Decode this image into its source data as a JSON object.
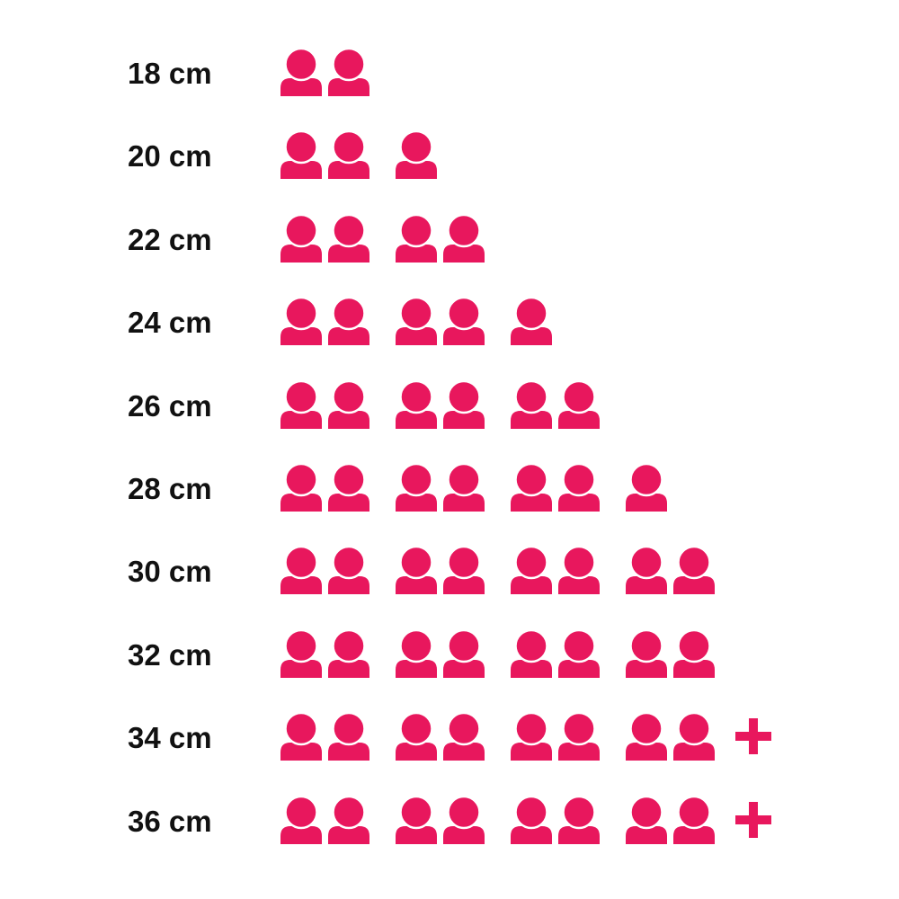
{
  "chart_data": {
    "type": "pictograph",
    "icon": "person-icon",
    "extra_icon": "plus-icon",
    "color": "#E8175D",
    "rows": [
      {
        "label": "18 cm",
        "count": 2,
        "plus": false
      },
      {
        "label": "20 cm",
        "count": 3,
        "plus": false
      },
      {
        "label": "22 cm",
        "count": 4,
        "plus": false
      },
      {
        "label": "24 cm",
        "count": 5,
        "plus": false
      },
      {
        "label": "26 cm",
        "count": 6,
        "plus": false
      },
      {
        "label": "28 cm",
        "count": 7,
        "plus": false
      },
      {
        "label": "30 cm",
        "count": 8,
        "plus": false
      },
      {
        "label": "32 cm",
        "count": 8,
        "plus": false
      },
      {
        "label": "34 cm",
        "count": 8,
        "plus": true
      },
      {
        "label": "36 cm",
        "count": 8,
        "plus": true
      }
    ]
  }
}
